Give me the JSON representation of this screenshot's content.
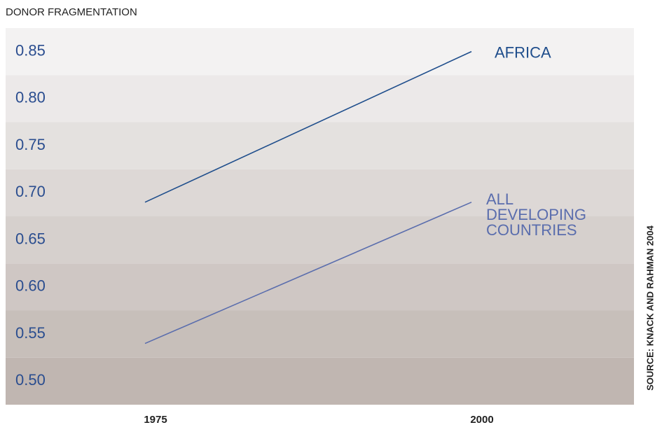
{
  "chart_data": {
    "type": "line",
    "title": "DONOR FRAGMENTATION",
    "source": "SOURCE: KNACK AND RAHMAN 2004",
    "categories": [
      "1975",
      "2000"
    ],
    "series": [
      {
        "name": "AFRICA",
        "color": "#1f4e8c",
        "values": [
          0.69,
          0.85
        ]
      },
      {
        "name": "ALL DEVELOPING COUNTRIES",
        "color": "#5a6dad",
        "values": [
          0.54,
          0.69
        ]
      }
    ],
    "ylim": [
      0.475,
      0.875
    ],
    "yticks": [
      {
        "value": 0.5,
        "label": "0.50"
      },
      0.55,
      {
        "value": 0.6,
        "label": "0.60"
      },
      0.65,
      {
        "value": 0.7,
        "label": "0.70"
      },
      0.75,
      {
        "value": 0.8,
        "label": "0.80"
      },
      0.85
    ]
  }
}
